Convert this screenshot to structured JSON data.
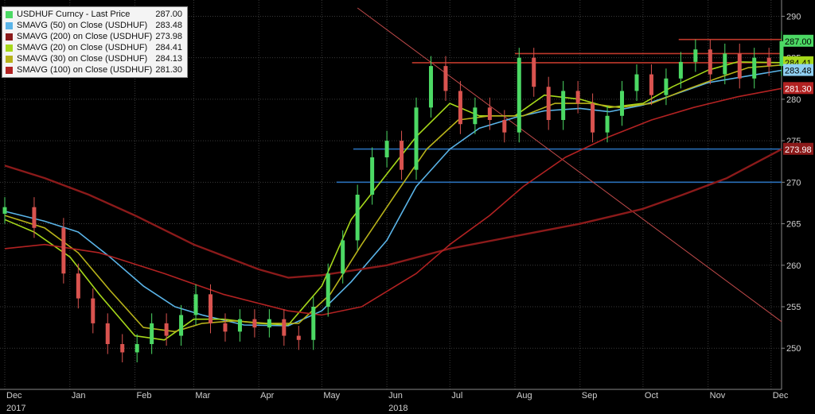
{
  "chart_data": {
    "type": "candlestick",
    "title": "",
    "xlabel": "",
    "ylabel": "",
    "ylim": [
      246,
      291
    ],
    "x_range": [
      "2017-12-01",
      "2018-12-06"
    ],
    "y_ticks": [
      250,
      255,
      260,
      265,
      270,
      275,
      280,
      285,
      290
    ],
    "x_ticks": [
      {
        "date": "2017-12-01",
        "label": "Dec"
      },
      {
        "date": "2018-01-01",
        "label": "Jan"
      },
      {
        "date": "2018-02-01",
        "label": "Feb"
      },
      {
        "date": "2018-03-01",
        "label": "Mar"
      },
      {
        "date": "2018-04-01",
        "label": "Apr"
      },
      {
        "date": "2018-05-01",
        "label": "May"
      },
      {
        "date": "2018-06-01",
        "label": "Jun"
      },
      {
        "date": "2018-07-01",
        "label": "Jul"
      },
      {
        "date": "2018-08-01",
        "label": "Aug"
      },
      {
        "date": "2018-09-01",
        "label": "Sep"
      },
      {
        "date": "2018-10-01",
        "label": "Oct"
      },
      {
        "date": "2018-11-01",
        "label": "Nov"
      },
      {
        "date": "2018-12-01",
        "label": "Dec"
      }
    ],
    "year_labels": [
      {
        "date": "2017-12-01",
        "label": "2017"
      },
      {
        "date": "2018-06-01",
        "label": "2018"
      }
    ],
    "grid": true,
    "legend_position": "top-left",
    "series": [
      {
        "name": "USDHUF Curncy - Last Price",
        "kind": "price",
        "last": "287.00",
        "color": "#4cd964",
        "points": [
          [
            "2017-12-01",
            267.0
          ],
          [
            "2017-12-15",
            264.5
          ],
          [
            "2017-12-29",
            259.0
          ],
          [
            "2018-01-05",
            256.0
          ],
          [
            "2018-01-12",
            253.0
          ],
          [
            "2018-01-19",
            250.5
          ],
          [
            "2018-01-26",
            249.5
          ],
          [
            "2018-02-02",
            250.5
          ],
          [
            "2018-02-09",
            253.0
          ],
          [
            "2018-02-16",
            251.5
          ],
          [
            "2018-02-23",
            254.0
          ],
          [
            "2018-03-02",
            256.5
          ],
          [
            "2018-03-09",
            253.0
          ],
          [
            "2018-03-16",
            252.0
          ],
          [
            "2018-03-23",
            253.5
          ],
          [
            "2018-03-30",
            252.5
          ],
          [
            "2018-04-06",
            253.5
          ],
          [
            "2018-04-13",
            251.5
          ],
          [
            "2018-04-20",
            251.0
          ],
          [
            "2018-04-27",
            255.0
          ],
          [
            "2018-05-04",
            259.0
          ],
          [
            "2018-05-11",
            263.0
          ],
          [
            "2018-05-18",
            268.5
          ],
          [
            "2018-05-25",
            273.0
          ],
          [
            "2018-06-01",
            275.0
          ],
          [
            "2018-06-08",
            271.5
          ],
          [
            "2018-06-15",
            279.0
          ],
          [
            "2018-06-22",
            284.0
          ],
          [
            "2018-06-29",
            281.0
          ],
          [
            "2018-07-06",
            277.0
          ],
          [
            "2018-07-13",
            279.0
          ],
          [
            "2018-07-20",
            277.5
          ],
          [
            "2018-07-27",
            276.0
          ],
          [
            "2018-08-03",
            285.0
          ],
          [
            "2018-08-10",
            281.5
          ],
          [
            "2018-08-17",
            277.5
          ],
          [
            "2018-08-24",
            281.0
          ],
          [
            "2018-08-31",
            279.5
          ],
          [
            "2018-09-07",
            276.0
          ],
          [
            "2018-09-14",
            278.0
          ],
          [
            "2018-09-21",
            281.0
          ],
          [
            "2018-09-28",
            283.0
          ],
          [
            "2018-10-05",
            280.5
          ],
          [
            "2018-10-12",
            282.5
          ],
          [
            "2018-10-19",
            284.5
          ],
          [
            "2018-10-26",
            286.0
          ],
          [
            "2018-11-02",
            283.0
          ],
          [
            "2018-11-09",
            285.5
          ],
          [
            "2018-11-16",
            282.5
          ],
          [
            "2018-11-23",
            285.0
          ],
          [
            "2018-11-30",
            284.0
          ],
          [
            "2018-12-06",
            287.0
          ]
        ]
      },
      {
        "name": "SMAVG (50)  on Close (USDHUF)",
        "kind": "sma",
        "last": "283.48",
        "color": "#5ab4e8",
        "points": [
          [
            "2017-12-01",
            266.5
          ],
          [
            "2017-12-20",
            265.3
          ],
          [
            "2018-01-05",
            264.0
          ],
          [
            "2018-01-20",
            261.0
          ],
          [
            "2018-02-05",
            257.5
          ],
          [
            "2018-02-20",
            255.0
          ],
          [
            "2018-03-05",
            254.0
          ],
          [
            "2018-03-25",
            252.8
          ],
          [
            "2018-04-15",
            252.7
          ],
          [
            "2018-05-01",
            254.5
          ],
          [
            "2018-05-15",
            258.0
          ],
          [
            "2018-06-01",
            263.0
          ],
          [
            "2018-06-15",
            269.5
          ],
          [
            "2018-07-01",
            274.0
          ],
          [
            "2018-07-15",
            276.5
          ],
          [
            "2018-08-01",
            277.8
          ],
          [
            "2018-08-15",
            278.6
          ],
          [
            "2018-09-01",
            278.9
          ],
          [
            "2018-09-15",
            278.5
          ],
          [
            "2018-10-01",
            279.3
          ],
          [
            "2018-10-15",
            280.5
          ],
          [
            "2018-11-01",
            282.0
          ],
          [
            "2018-11-20",
            282.8
          ],
          [
            "2018-12-06",
            283.48
          ]
        ]
      },
      {
        "name": "SMAVG (200)  on Close (USDHUF)",
        "kind": "sma",
        "last": "273.98",
        "color": "#8b1a1a",
        "points": [
          [
            "2017-12-01",
            272.0
          ],
          [
            "2017-12-20",
            270.5
          ],
          [
            "2018-01-10",
            268.5
          ],
          [
            "2018-02-01",
            266.0
          ],
          [
            "2018-03-01",
            262.5
          ],
          [
            "2018-04-01",
            259.5
          ],
          [
            "2018-04-15",
            258.5
          ],
          [
            "2018-05-01",
            258.8
          ],
          [
            "2018-06-01",
            260.0
          ],
          [
            "2018-07-01",
            262.0
          ],
          [
            "2018-08-01",
            263.5
          ],
          [
            "2018-09-01",
            265.0
          ],
          [
            "2018-10-01",
            266.8
          ],
          [
            "2018-10-20",
            268.5
          ],
          [
            "2018-11-10",
            270.5
          ],
          [
            "2018-12-06",
            273.98
          ]
        ]
      },
      {
        "name": "SMAVG (20)  on Close (USDHUF)",
        "kind": "sma",
        "last": "284.41",
        "color": "#a6d81a",
        "points": [
          [
            "2017-12-01",
            265.5
          ],
          [
            "2017-12-15",
            264.0
          ],
          [
            "2018-01-01",
            261.0
          ],
          [
            "2018-01-15",
            256.5
          ],
          [
            "2018-02-01",
            251.5
          ],
          [
            "2018-02-15",
            251.0
          ],
          [
            "2018-03-01",
            253.5
          ],
          [
            "2018-03-15",
            253.5
          ],
          [
            "2018-04-01",
            253.0
          ],
          [
            "2018-04-15",
            252.8
          ],
          [
            "2018-05-01",
            257.5
          ],
          [
            "2018-05-15",
            265.5
          ],
          [
            "2018-06-01",
            271.0
          ],
          [
            "2018-06-15",
            275.5
          ],
          [
            "2018-07-01",
            279.5
          ],
          [
            "2018-07-15",
            278.0
          ],
          [
            "2018-08-01",
            278.0
          ],
          [
            "2018-08-15",
            280.5
          ],
          [
            "2018-09-01",
            280.0
          ],
          [
            "2018-09-15",
            279.0
          ],
          [
            "2018-10-01",
            279.5
          ],
          [
            "2018-10-15",
            281.5
          ],
          [
            "2018-11-01",
            283.5
          ],
          [
            "2018-11-15",
            284.5
          ],
          [
            "2018-12-06",
            284.41
          ]
        ]
      },
      {
        "name": "SMAVG (30)  on Close (USDHUF)",
        "kind": "sma",
        "last": "284.13",
        "color": "#b7b21a",
        "points": [
          [
            "2017-12-01",
            266.0
          ],
          [
            "2017-12-20",
            264.5
          ],
          [
            "2018-01-05",
            261.5
          ],
          [
            "2018-01-20",
            257.0
          ],
          [
            "2018-02-05",
            252.5
          ],
          [
            "2018-02-20",
            252.0
          ],
          [
            "2018-03-05",
            253.0
          ],
          [
            "2018-03-20",
            253.3
          ],
          [
            "2018-04-05",
            253.0
          ],
          [
            "2018-04-20",
            253.0
          ],
          [
            "2018-05-05",
            256.5
          ],
          [
            "2018-05-20",
            262.5
          ],
          [
            "2018-06-05",
            268.5
          ],
          [
            "2018-06-20",
            274.0
          ],
          [
            "2018-07-05",
            277.5
          ],
          [
            "2018-07-20",
            278.0
          ],
          [
            "2018-08-05",
            278.0
          ],
          [
            "2018-08-20",
            279.5
          ],
          [
            "2018-09-05",
            279.5
          ],
          [
            "2018-09-20",
            279.0
          ],
          [
            "2018-10-05",
            279.5
          ],
          [
            "2018-10-20",
            281.0
          ],
          [
            "2018-11-05",
            282.5
          ],
          [
            "2018-11-20",
            283.8
          ],
          [
            "2018-12-06",
            284.13
          ]
        ]
      },
      {
        "name": "SMAVG (100)  on Close (USDHUF)",
        "kind": "sma",
        "last": "281.30",
        "color": "#b22222",
        "points": [
          [
            "2017-12-01",
            262.0
          ],
          [
            "2017-12-20",
            262.5
          ],
          [
            "2018-01-15",
            261.5
          ],
          [
            "2018-02-15",
            259.0
          ],
          [
            "2018-03-15",
            256.5
          ],
          [
            "2018-04-15",
            254.5
          ],
          [
            "2018-05-01",
            254.0
          ],
          [
            "2018-05-20",
            255.0
          ],
          [
            "2018-06-15",
            259.0
          ],
          [
            "2018-07-01",
            262.5
          ],
          [
            "2018-07-20",
            266.0
          ],
          [
            "2018-08-05",
            269.5
          ],
          [
            "2018-08-25",
            273.0
          ],
          [
            "2018-09-15",
            275.5
          ],
          [
            "2018-10-05",
            277.5
          ],
          [
            "2018-10-25",
            279.0
          ],
          [
            "2018-11-15",
            280.3
          ],
          [
            "2018-12-06",
            281.3
          ]
        ]
      }
    ],
    "level_lines": [
      {
        "value": 274,
        "from": "2018-05-16",
        "to": "2018-12-31",
        "color": "#2a6fb8"
      },
      {
        "value": 270,
        "from": "2018-05-08",
        "to": "2018-12-31",
        "color": "#2a6fb8"
      },
      {
        "value": 284.4,
        "from": "2018-06-13",
        "to": "2018-12-31",
        "color": "#c0392b"
      },
      {
        "value": 285.5,
        "from": "2018-08-01",
        "to": "2018-12-31",
        "color": "#c0392b"
      },
      {
        "value": 287.2,
        "from": "2018-10-18",
        "to": "2018-12-31",
        "color": "#c0392b"
      }
    ],
    "trend_lines": [
      {
        "from": [
          "2018-05-18",
          291.0
        ],
        "to": [
          "2018-12-31",
          253.2
        ],
        "color": "#c04a4a"
      }
    ],
    "last_value_labels": [
      {
        "label": "287.00",
        "value": 287.0,
        "bg": "#4cd964",
        "fg": "#000000"
      },
      {
        "label": "284.41",
        "value": 284.41,
        "bg": "#a6d81a",
        "fg": "#000000"
      },
      {
        "label": "283.48",
        "value": 283.48,
        "bg": "#8fd0f2",
        "fg": "#000000"
      },
      {
        "label": "281.30",
        "value": 281.3,
        "bg": "#b22222",
        "fg": "#ffffff"
      },
      {
        "label": "273.98",
        "value": 273.98,
        "bg": "#8b1a1a",
        "fg": "#ffffff"
      }
    ]
  }
}
